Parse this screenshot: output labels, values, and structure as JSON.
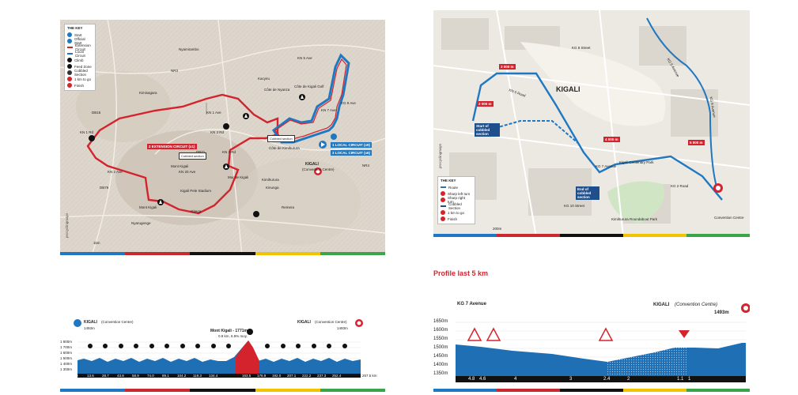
{
  "colors": {
    "extension": "#d5232e",
    "local": "#1f78c1",
    "profile_fill": "#1f6fb5",
    "stripe": [
      "#1f78c1",
      "#c8282e",
      "#111111",
      "#f2c400",
      "#3aa54a"
    ]
  },
  "left_map": {
    "key": {
      "title": "THE KEY",
      "items": [
        "Start",
        "Official Start",
        "Extension Circuit",
        "Local Circuit",
        "Climb",
        "Feed Zone",
        "Cobbled Section",
        "1 km to go",
        "Finish"
      ]
    },
    "places": {
      "kn5av": "KN 5 Ave",
      "kn7av": "KN 7 Ave",
      "kg9av": "KG 9 Ave",
      "kn3r": "KN 3 Rd",
      "kn3rd2": "KN 3 Rd",
      "kn1rd": "KN 1 Rd",
      "kn2av": "KN 2 Ave",
      "kn20": "KN 20 Ave",
      "kn1": "KN 1 Ave",
      "nr3": "NR3",
      "nr4": "NR4",
      "db15": "DB15",
      "db76": "DB76",
      "db71": "DB71",
      "nyamirambo": "Nyamirambo",
      "kimisagara": "Kimisagara",
      "kigalipele": "Kigali Pele Stadium",
      "mountkigali": "Mont Kigali",
      "nyarugenge": "Nyarugenge",
      "gitega": "Gitega",
      "kimihurura": "Kimihurura",
      "remera": "Remera",
      "kacyiru": "Kacyiru",
      "kinunga": "Kinunga"
    },
    "climbs": {
      "nyanza": "Côte de Nyanza",
      "golf": "Côte de Kigali Golf",
      "kimihurura": "Côte de Kimihurura",
      "mur": "Mur de Kigali",
      "mont": "Mont Kigali"
    },
    "extension_label": "EXTENSION CIRCUIT (x1)",
    "local1": "LOCAL CIRCUIT (x9)",
    "local2": "LOCAL CIRCUIT (x6)",
    "cobbled": "Cobbled section",
    "cobbled2": "Cobbled section",
    "kigali": "KIGALI",
    "convention": "(Convention Centre)",
    "extension_num": "2",
    "local_num1": "1",
    "local_num2": "3",
    "scale": "1km",
    "brand": "procyclingmaps"
  },
  "right_map": {
    "city": "KIGALI",
    "distances": [
      "3 000 m",
      "2 000 m",
      "4 000 m",
      "5 000 m"
    ],
    "start_cobbled": "Start of cobbled section",
    "end_cobbled": "End of cobbled section",
    "park": "Kigali Centenary Park",
    "roundabout": "Kimihurura Roundabout Park",
    "convention": "Convention Centre",
    "key": {
      "title": "THE KEY",
      "items": [
        "Route",
        "Sharp left turn",
        "Sharp right turn",
        "Cobbled Section",
        "1 km to go",
        "Finish"
      ]
    },
    "streets": [
      "KG 8 Street",
      "KN 5 Road",
      "KG 5 Avenue",
      "KG 7 Avenue",
      "KG 2 Road",
      "KG 9 Avenue",
      "KG 10 Street"
    ],
    "scale": "200m",
    "brand": "procyclingmaps"
  },
  "profile_heading": "Profile last 5 km",
  "left_profile": {
    "start": "KIGALI",
    "start_sub": "(Convention Centre)",
    "start_alt": "1493m",
    "finish": "KIGALI",
    "finish_sub": "(Convention Centre)",
    "finish_alt": "1493m",
    "peak": "Mont Kigali - 1771m",
    "peak_sub": "0.9 km, 6.9% moy.",
    "y_ticks": [
      "1 800m",
      "1 700m",
      "1 600m",
      "1 500m",
      "1 400m",
      "1 300m"
    ],
    "x_labels": [
      "0",
      "13.6",
      "28.7",
      "43.8",
      "58.9",
      "74.0",
      "89.1",
      "104.2",
      "119.3",
      "134.4",
      "163.5",
      "176.9",
      "192.0",
      "207.1",
      "222.2",
      "237.3",
      "252.4",
      "267.5 km"
    ]
  },
  "right_profile": {
    "start_label": "KG 7 Avenue",
    "finish": "KIGALI",
    "finish_sub": "(Convention Centre)",
    "finish_alt": "1493m",
    "y_ticks": [
      "1650m",
      "1600m",
      "1550m",
      "1500m",
      "1450m",
      "1400m",
      "1350m"
    ],
    "x_labels": [
      "4.8",
      "4.6",
      "4",
      "3",
      "2.4",
      "2",
      "1.1",
      "1"
    ]
  }
}
